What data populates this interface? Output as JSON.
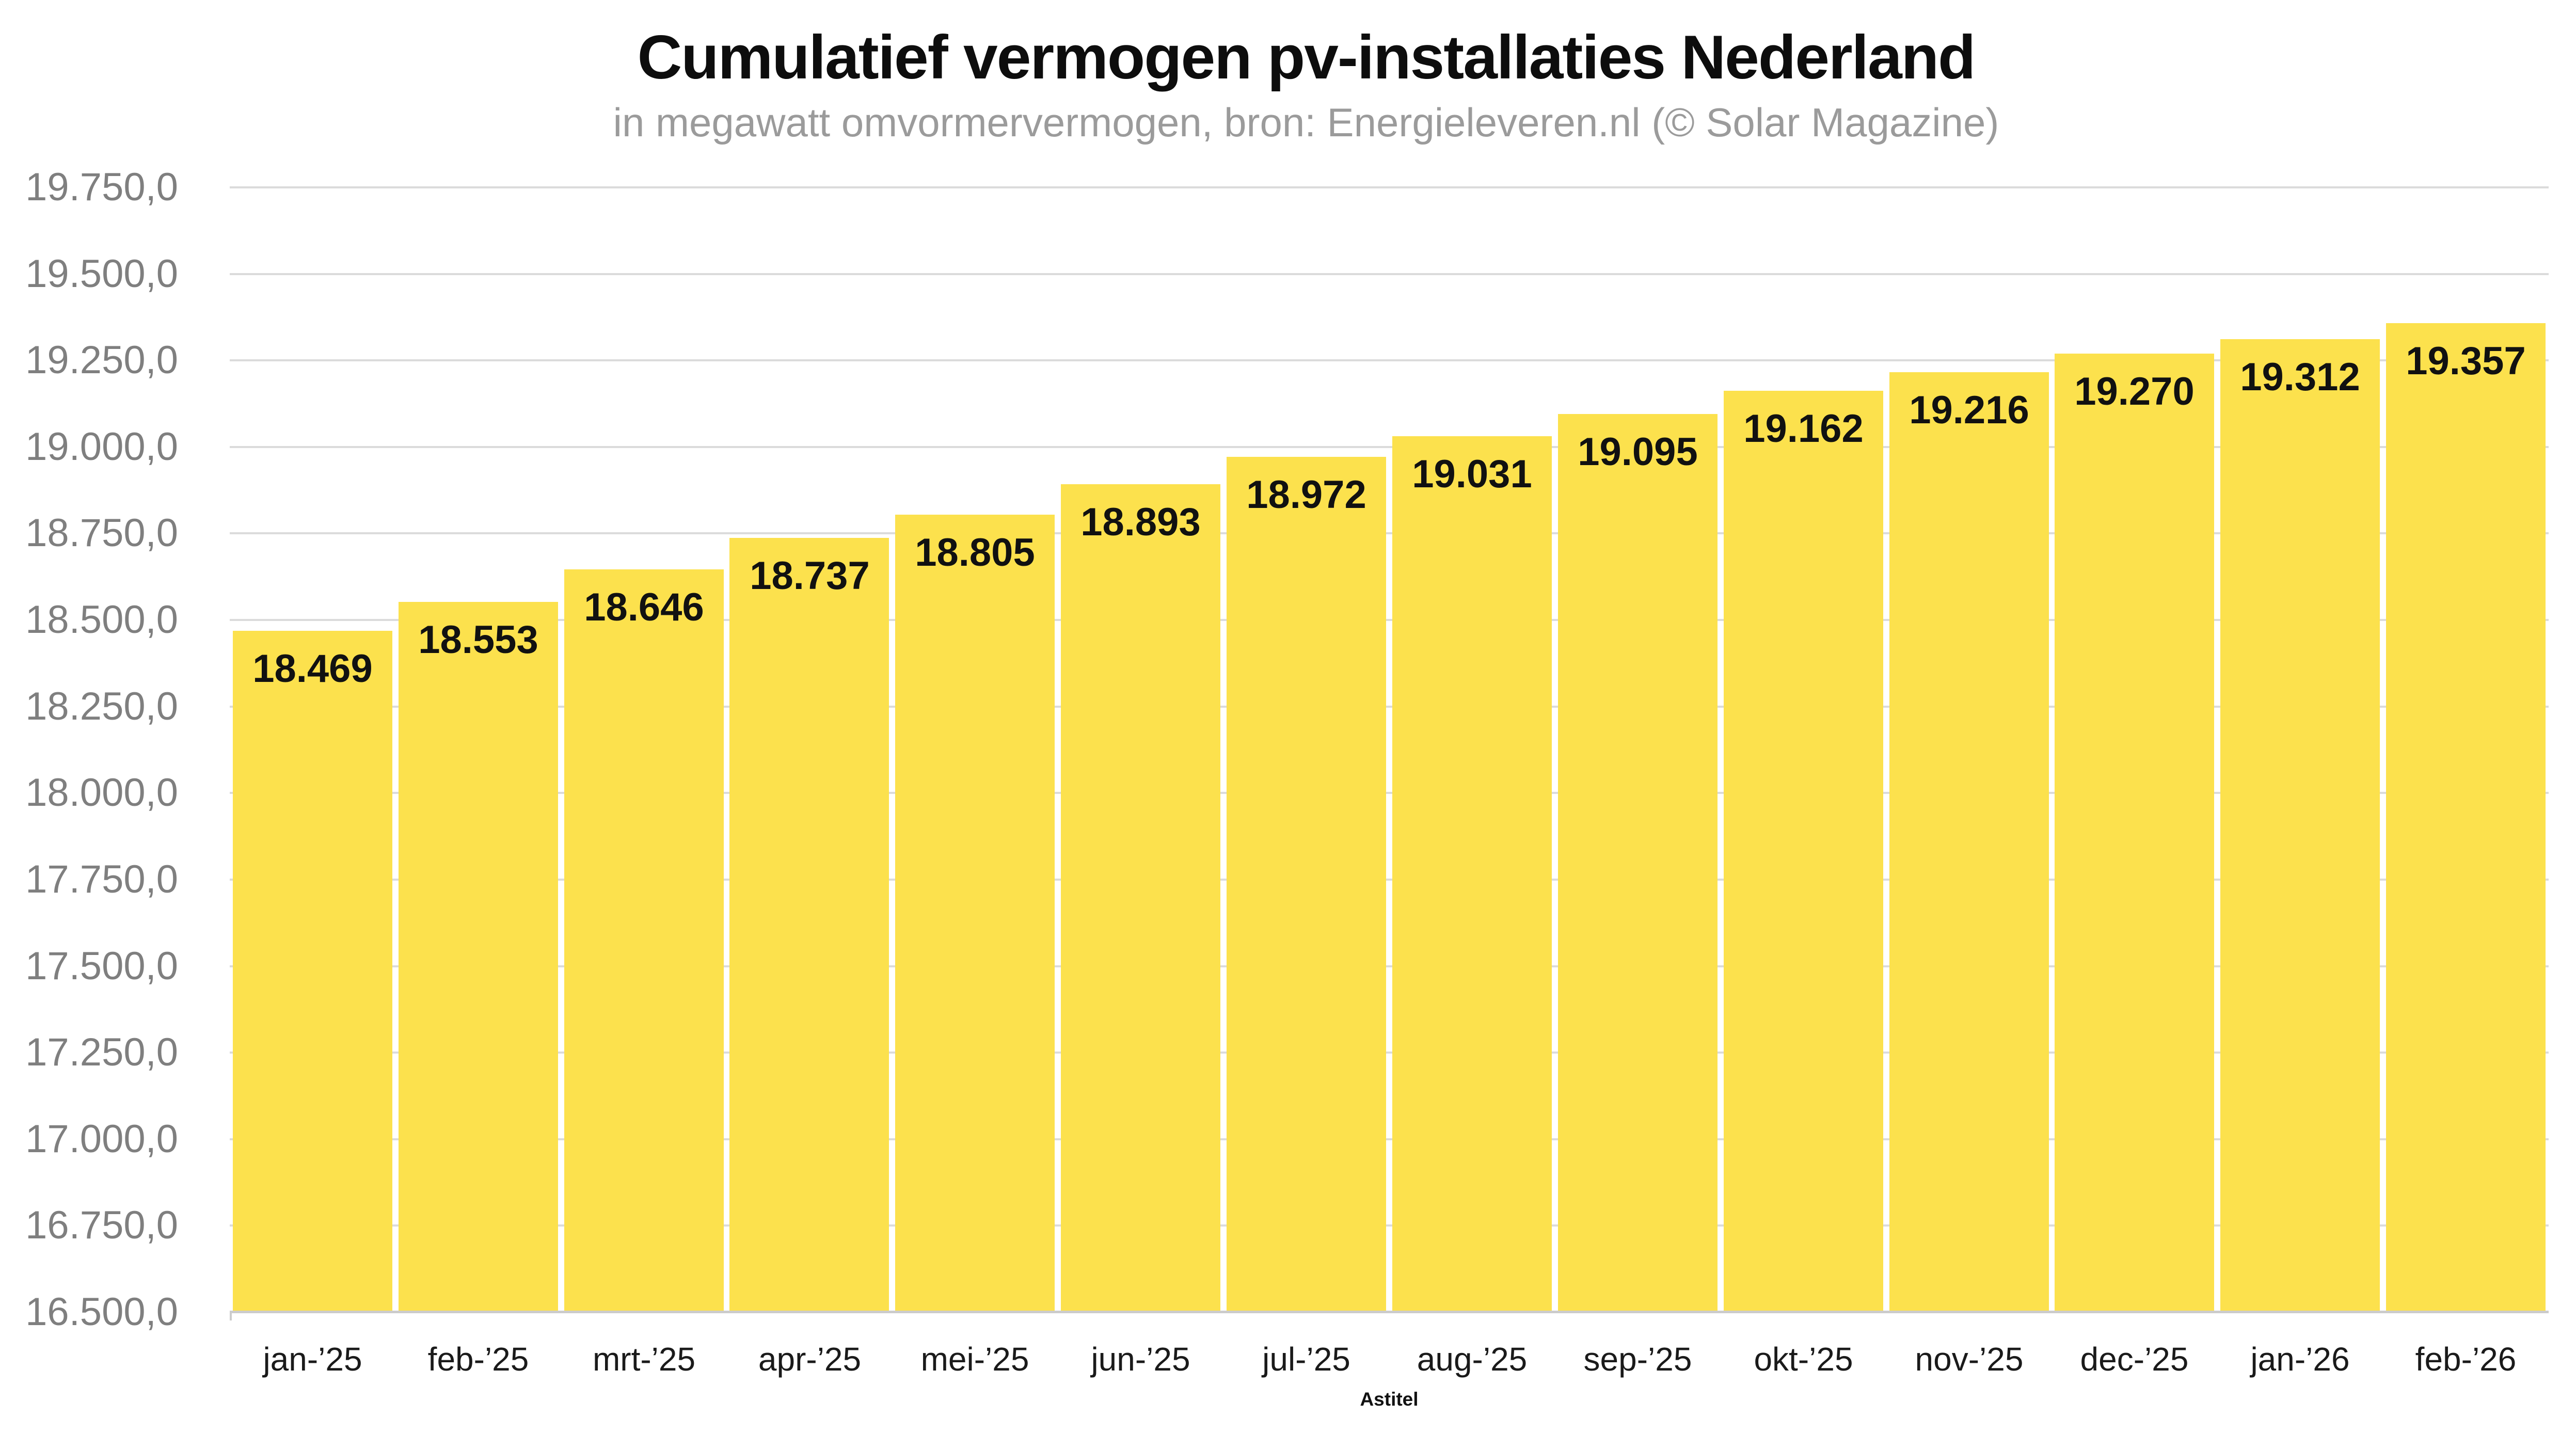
{
  "chart_data": {
    "type": "bar",
    "title": "Cumulatief vermogen pv-installaties Nederland",
    "subtitle": "in megawatt omvormervermogen, bron: Energieleveren.nl (© Solar Magazine)",
    "x_axis_title": "Astitel",
    "categories": [
      "jan-’25",
      "feb-’25",
      "mrt-’25",
      "apr-’25",
      "mei-’25",
      "jun-’25",
      "jul-’25",
      "aug-’25",
      "sep-’25",
      "okt-’25",
      "nov-’25",
      "dec-’25",
      "jan-’26",
      "feb-’26"
    ],
    "values": [
      18469,
      18553,
      18646,
      18737,
      18805,
      18893,
      18972,
      19031,
      19095,
      19162,
      19216,
      19270,
      19312,
      19357
    ],
    "bar_labels": [
      "18.469",
      "18.553",
      "18.646",
      "18.737",
      "18.805",
      "18.893",
      "18.972",
      "19.031",
      "19.095",
      "19.162",
      "19.216",
      "19.270",
      "19.312",
      "19.357"
    ],
    "y_ticks": [
      {
        "value": 16500,
        "label": "16.500,0"
      },
      {
        "value": 16750,
        "label": "16.750,0"
      },
      {
        "value": 17000,
        "label": "17.000,0"
      },
      {
        "value": 17250,
        "label": "17.250,0"
      },
      {
        "value": 17500,
        "label": "17.500,0"
      },
      {
        "value": 17750,
        "label": "17.750,0"
      },
      {
        "value": 18000,
        "label": "18.000,0"
      },
      {
        "value": 18250,
        "label": "18.250,0"
      },
      {
        "value": 18500,
        "label": "18.500,0"
      },
      {
        "value": 18750,
        "label": "18.750,0"
      },
      {
        "value": 19000,
        "label": "19.000,0"
      },
      {
        "value": 19250,
        "label": "19.250,0"
      },
      {
        "value": 19500,
        "label": "19.500,0"
      },
      {
        "value": 19750,
        "label": "19.750,0"
      }
    ],
    "ylim": [
      16500,
      19750
    ],
    "grid": true,
    "legend": "none",
    "colors": {
      "bar": "#FCE14D",
      "bar_value_label": "#111111",
      "title": "#0D0D0D",
      "subtitle": "#9B9B9B",
      "y_tick_label": "#7F7F7F",
      "x_tick_label": "#1A1A1A",
      "gridline": "#DBDBDB",
      "axis_line": "#CCCCCC",
      "background": "#FFFFFF"
    }
  }
}
